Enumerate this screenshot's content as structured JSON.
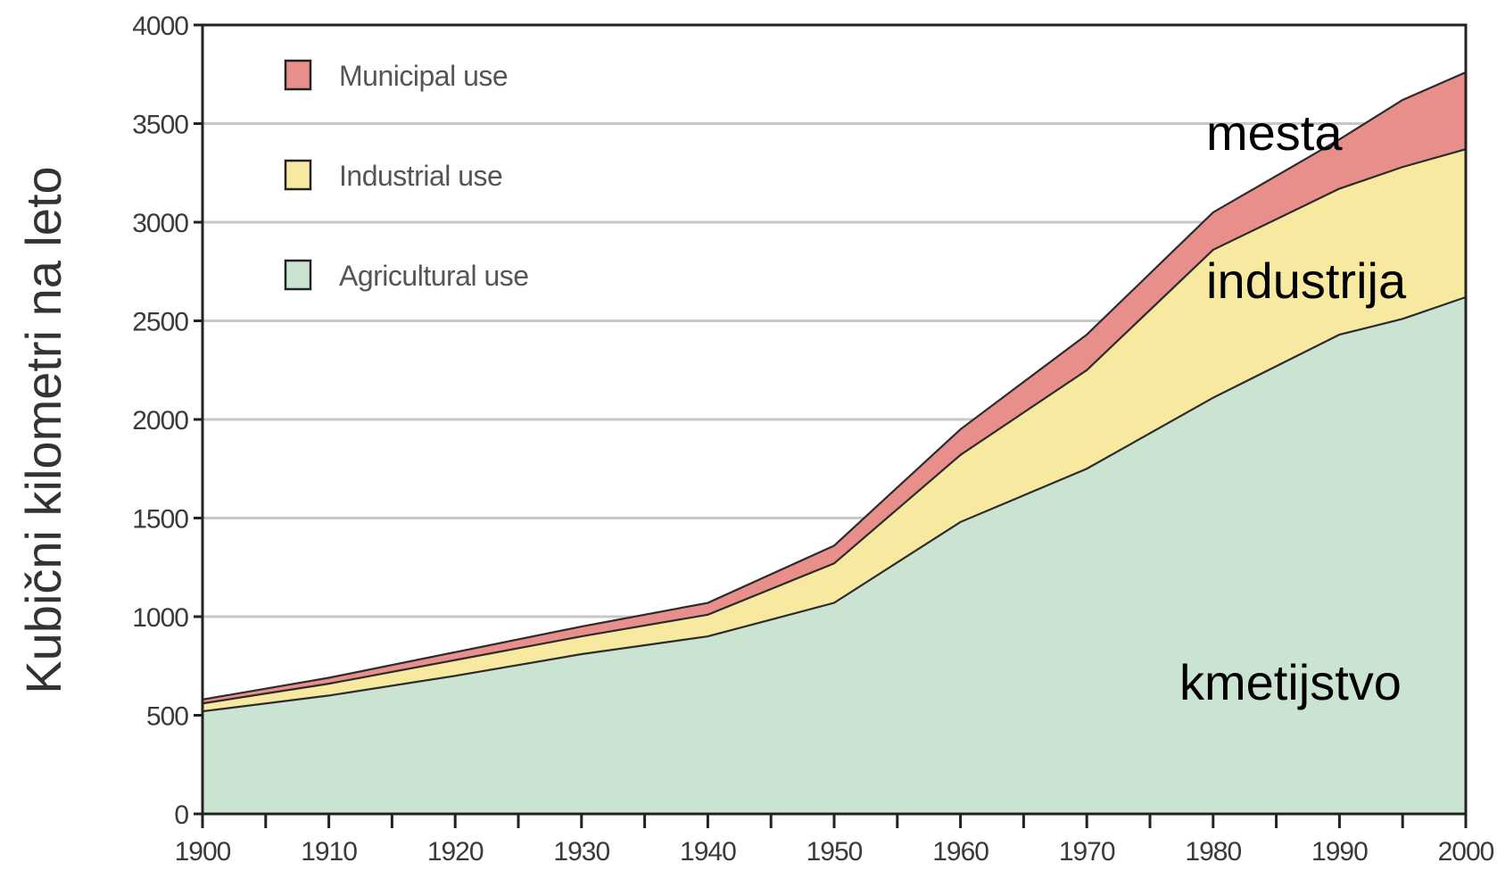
{
  "chart_data": {
    "type": "area",
    "stacked": true,
    "title": "",
    "xlabel": "",
    "ylabel": "Kubični kilometri na leto",
    "xlim": [
      1900,
      2000
    ],
    "ylim": [
      0,
      4000
    ],
    "xticks": [
      1900,
      1910,
      1920,
      1930,
      1940,
      1950,
      1960,
      1970,
      1980,
      1990,
      2000
    ],
    "yticks": [
      0,
      500,
      1000,
      1500,
      2000,
      2500,
      3000,
      3500,
      4000
    ],
    "grid": "horizontal",
    "legend_position": "top-left",
    "x": [
      1900,
      1910,
      1920,
      1930,
      1940,
      1950,
      1960,
      1970,
      1980,
      1990,
      1995,
      2000
    ],
    "series": [
      {
        "name": "Agricultural use",
        "color": "#cbe4d2",
        "values": [
          520,
          600,
          700,
          810,
          900,
          1070,
          1480,
          1750,
          2110,
          2430,
          2510,
          2620
        ]
      },
      {
        "name": "Industrial use",
        "color": "#f7eaa0",
        "values": [
          40,
          60,
          80,
          90,
          110,
          200,
          340,
          500,
          750,
          740,
          770,
          750
        ]
      },
      {
        "name": "Municipal use",
        "color": "#e88f8c",
        "values": [
          20,
          30,
          40,
          50,
          60,
          90,
          130,
          180,
          190,
          250,
          340,
          390
        ]
      }
    ],
    "annotations": [
      {
        "text": "mesta",
        "series": "Municipal use"
      },
      {
        "text": "industrija",
        "series": "Industrial use"
      },
      {
        "text": "kmetijstvo",
        "series": "Agricultural use"
      }
    ]
  }
}
